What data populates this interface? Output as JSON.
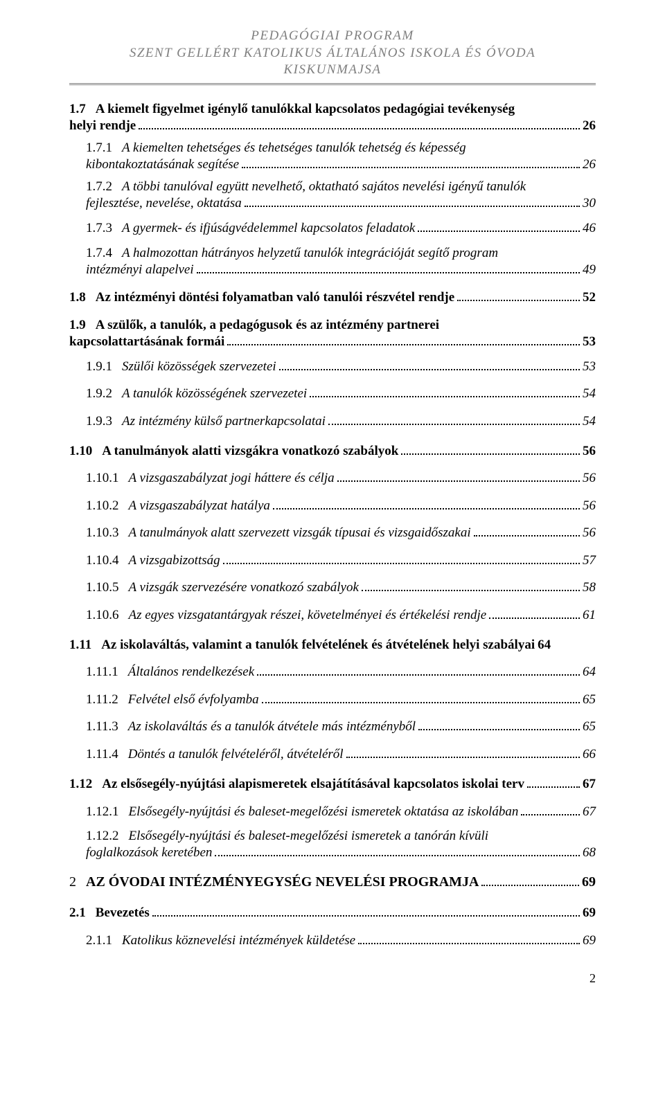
{
  "header": {
    "line1": "PEDAGÓGIAI PROGRAM",
    "line2": "SZENT GELLÉRT KATOLIKUS ÁLTALÁNOS ISKOLA ÉS ÓVODA",
    "line3": "KISKUNMAJSA"
  },
  "entries": [
    {
      "level": 1,
      "num": "1.7",
      "title_pre": "A kiemelt figyelmet igénylő tanulókkal kapcsolatos pedagógiai tevékenység",
      "title_last": "helyi rendje",
      "page": "26",
      "multi": true
    },
    {
      "level": 2,
      "num": "1.7.1",
      "title_pre": "A kiemelten tehetséges és tehetséges tanulók tehetség és képesség",
      "title_last": "kibontakoztatásának segítése",
      "page": "26",
      "multi": true
    },
    {
      "level": 2,
      "num": "1.7.2",
      "title_pre": "A többi tanulóval együtt nevelhető, oktatható sajátos nevelési igényű tanulók",
      "title_last": "fejlesztése, nevelése, oktatása",
      "page": "30",
      "multi": true
    },
    {
      "level": 2,
      "num": "1.7.3",
      "title": "A gyermek- és ifjúságvédelemmel kapcsolatos feladatok",
      "page": "46"
    },
    {
      "level": 2,
      "num": "1.7.4",
      "title_pre": "A halmozottan hátrányos helyzetű tanulók integrációját segítő program",
      "title_last": "intézményi alapelvei",
      "page": "49",
      "multi": true
    },
    {
      "level": 1,
      "num": "1.8",
      "title": "Az intézményi döntési folyamatban való tanulói részvétel rendje",
      "page": "52"
    },
    {
      "level": 1,
      "num": "1.9",
      "title_pre": "A  szülők,  a  tanulók,  a  pedagógusok  és  az  intézmény  partnerei",
      "title_last": "kapcsolattartásának formái",
      "page": "53",
      "multi": true
    },
    {
      "level": 2,
      "num": "1.9.1",
      "title": "Szülői közösségek szervezetei",
      "page": "53"
    },
    {
      "level": 2,
      "num": "1.9.2",
      "title": "A tanulók közösségének szervezetei",
      "page": "54"
    },
    {
      "level": 2,
      "num": "1.9.3",
      "title": "Az intézmény külső partnerkapcsolatai",
      "page": "54"
    },
    {
      "level": 1,
      "num": "1.10",
      "title": "A tanulmányok alatti vizsgákra vonatkozó szabályok",
      "page": "56"
    },
    {
      "level": 2,
      "num": "1.10.1",
      "title": "A vizsgaszabályzat jogi háttere és célja",
      "page": "56"
    },
    {
      "level": 2,
      "num": "1.10.2",
      "title": "A vizsgaszabályzat hatálya",
      "page": "56"
    },
    {
      "level": 2,
      "num": "1.10.3",
      "title": "A tanulmányok alatt szervezett vizsgák típusai és vizsgaidőszakai",
      "page": "56"
    },
    {
      "level": 2,
      "num": "1.10.4",
      "title": "A vizsgabizottság",
      "page": "57"
    },
    {
      "level": 2,
      "num": "1.10.5",
      "title": "A vizsgák szervezésére vonatkozó szabályok",
      "page": "58"
    },
    {
      "level": 2,
      "num": "1.10.6",
      "title": "Az egyes vizsgatantárgyak részei, követelményei és értékelési rendje",
      "page": "61"
    },
    {
      "level": 1,
      "num": "1.11",
      "title": "Az iskolaváltás, valamint a tanulók felvételének és átvételének helyi szabályai",
      "page": "64",
      "tight": true
    },
    {
      "level": 2,
      "num": "1.11.1",
      "title": "Általános rendelkezések",
      "page": "64"
    },
    {
      "level": 2,
      "num": "1.11.2",
      "title": "Felvétel első évfolyamba",
      "page": "65"
    },
    {
      "level": 2,
      "num": "1.11.3",
      "title": "Az iskolaváltás és a tanulók átvétele más intézményből",
      "page": "65"
    },
    {
      "level": 2,
      "num": "1.11.4",
      "title": "Döntés a tanulók felvételéről, átvételéről",
      "page": "66"
    },
    {
      "level": 1,
      "num": "1.12",
      "title": "Az elsősegély-nyújtási alapismeretek elsajátításával kapcsolatos iskolai terv",
      "page": "67"
    },
    {
      "level": 2,
      "num": "1.12.1",
      "title": "Elsősegély-nyújtási és baleset-megelőzési ismeretek oktatása az iskolában",
      "page": "67"
    },
    {
      "level": 2,
      "num": "1.12.2",
      "title_pre": "Elsősegély-nyújtási és baleset-megelőzési ismeretek a tanórán kívüli",
      "title_last": "foglalkozások keretében",
      "page": "68",
      "multi": true
    },
    {
      "level": 0,
      "num": "2",
      "title": "AZ ÓVODAI INTÉZMÉNYEGYSÉG NEVELÉSI PROGRAMJA",
      "page": "69"
    },
    {
      "level": 1,
      "num": "2.1",
      "title": "Bevezetés",
      "page": "69"
    },
    {
      "level": 2,
      "num": "2.1.1",
      "title": "Katolikus köznevelési intézmények küldetése",
      "page": "69"
    }
  ],
  "pageNumber": "2"
}
